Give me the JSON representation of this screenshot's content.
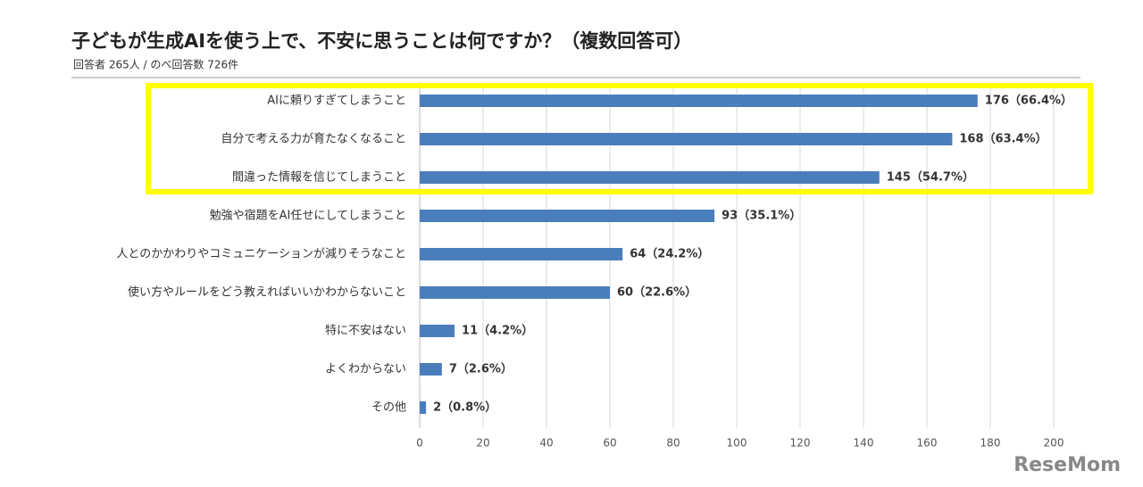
{
  "chart_data": {
    "type": "bar",
    "orientation": "horizontal",
    "title": "子どもが生成AIを使う上で、不安に思うことは何ですか？（複数回答可）",
    "subtitle": "回答者 265人 / のべ回答数 726件",
    "categories": [
      "AIに頼りすぎてしまうこと",
      "自分で考える力が育たなくなること",
      "間違った情報を信じてしまうこと",
      "勉強や宿題をAI任せにしてしまうこと",
      "人とのかかわりやコミュニケーションが減りそうなこと",
      "使い方やルールをどう教えればいいかわからないこと",
      "特に不安はない",
      "よくわからない",
      "その他"
    ],
    "values": [
      176,
      168,
      145,
      93,
      64,
      60,
      11,
      7,
      2
    ],
    "value_labels": [
      "176（66.4%）",
      "168（63.4%）",
      "145（54.7%）",
      "93（35.1%）",
      "64（24.2%）",
      "60（22.6%）",
      "11（4.2%）",
      "7（2.6%）",
      "2（0.8%）"
    ],
    "color": "#4a7ebb",
    "xlim": [
      0,
      200
    ],
    "xticks": [
      0,
      20,
      40,
      60,
      80,
      100,
      120,
      140,
      160,
      180,
      200
    ],
    "grid": true
  },
  "watermark": "ReseMom"
}
